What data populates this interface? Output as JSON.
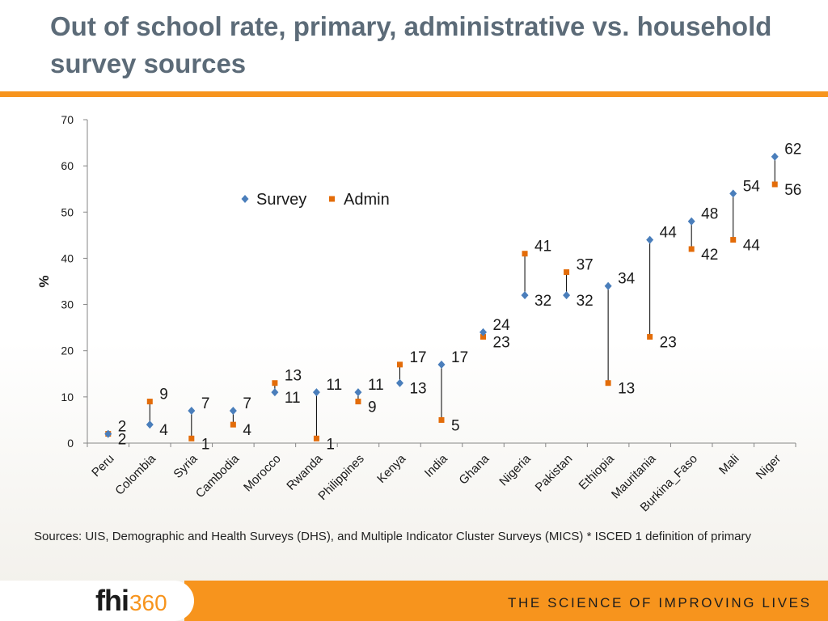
{
  "page": {
    "title": "Out of school rate, primary, administrative vs. household survey sources",
    "sources_note": "Sources: UIS, Demographic and Health Surveys (DHS), and Multiple Indicator Cluster Surveys (MICS) * ISCED 1 definition of primary",
    "logo_text_main": "fhi",
    "logo_text_num": "360",
    "tagline": "THE SCIENCE OF IMPROVING LIVES"
  },
  "colors": {
    "title": "#5c6b78",
    "accent": "#f7941d",
    "survey": "#4a7ebb",
    "admin": "#e36c09"
  },
  "chart_data": {
    "type": "scatter",
    "title": "",
    "xlabel": "",
    "ylabel": "%",
    "ylim": [
      0,
      70
    ],
    "yticks": [
      0,
      10,
      20,
      30,
      40,
      50,
      60,
      70
    ],
    "categories": [
      "Peru",
      "Colombia",
      "Syria",
      "Cambodia",
      "Morocco",
      "Rwanda",
      "Philippines",
      "Kenya",
      "India",
      "Ghana",
      "Nigeria",
      "Pakistan",
      "Ethiopia",
      "Mauritania",
      "Burkina_Faso",
      "Mali",
      "Niger"
    ],
    "series": [
      {
        "name": "Survey",
        "marker": "diamond",
        "values": [
          2,
          4,
          7,
          7,
          11,
          11,
          11,
          13,
          17,
          24,
          32,
          32,
          34,
          44,
          48,
          54,
          62
        ]
      },
      {
        "name": "Admin",
        "marker": "square",
        "values": [
          2,
          9,
          1,
          4,
          13,
          1,
          9,
          17,
          5,
          23,
          41,
          37,
          13,
          23,
          42,
          44,
          56
        ]
      }
    ],
    "drop_lines": true,
    "legend": "top-center"
  }
}
